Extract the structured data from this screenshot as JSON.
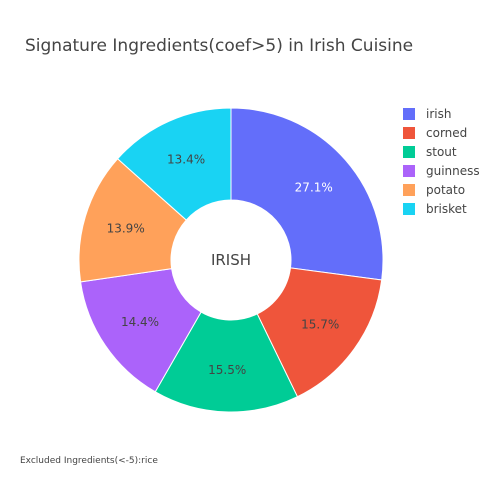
{
  "chart_data": {
    "type": "pie",
    "title": "Signature Ingredients(coef>5) in Irish Cuisine",
    "center_label": "IRISH",
    "hole": true,
    "legend_position": "top-right",
    "categories": [
      "irish",
      "corned",
      "stout",
      "guinness",
      "potato",
      "brisket"
    ],
    "values": [
      27.1,
      15.7,
      15.5,
      14.4,
      13.9,
      13.4
    ],
    "value_labels": [
      "27.1%",
      "15.7%",
      "15.5%",
      "14.4%",
      "13.9%",
      "13.4%"
    ],
    "legend_order": [
      "irish",
      "corned",
      "stout",
      "guinness",
      "potato",
      "brisket"
    ],
    "colors": {
      "irish": "#636efa",
      "corned": "#ef553b",
      "stout": "#00cc96",
      "guinness": "#ab63fa",
      "potato": "#ffa15a",
      "brisket": "#19d3f3"
    },
    "label_colors": {
      "irish": "#ffffff",
      "corned": "#444444",
      "stout": "#444444",
      "guinness": "#444444",
      "potato": "#444444",
      "brisket": "#444444"
    },
    "direction": "clockwise",
    "start_angle_deg": 0
  },
  "annotation": "Excluded Ingredients(<-5):rice"
}
